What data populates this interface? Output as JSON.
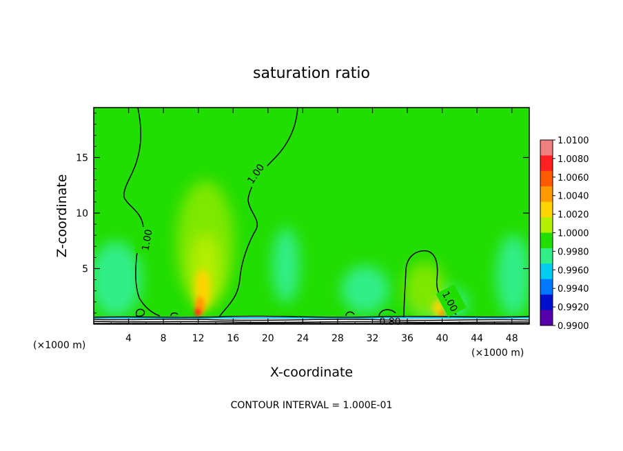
{
  "chart_data": {
    "type": "heatmap",
    "title": "saturation ratio",
    "xlabel": "X-coordinate",
    "ylabel": "Z-coordinate",
    "x_unit_left": "(×1000 m)",
    "x_unit_right": "(×1000 m)",
    "xlim": [
      0,
      50
    ],
    "ylim": [
      0,
      19.5
    ],
    "x_ticks": [
      4,
      8,
      12,
      16,
      20,
      24,
      28,
      32,
      36,
      40,
      44,
      48
    ],
    "y_ticks": [
      5,
      10,
      15
    ],
    "colorbar": {
      "levels": [
        "1.0100",
        "1.0080",
        "1.0060",
        "1.0040",
        "1.0020",
        "1.0000",
        "0.9980",
        "0.9960",
        "0.9940",
        "0.9920",
        "0.9900"
      ],
      "colors": [
        "#f08080",
        "#ff2020",
        "#ff5a00",
        "#ff9900",
        "#ffd400",
        "#b4ee00",
        "#22dd00",
        "#33ee88",
        "#00ccee",
        "#0077ff",
        "#0011cc",
        "#5500aa"
      ]
    },
    "contour_labels": [
      "1.00",
      "1.00",
      "1.00",
      "0.80"
    ],
    "contour_interval_text": "CONTOUR INTERVAL = 1.000E-01",
    "background_color": "#22dd00"
  }
}
